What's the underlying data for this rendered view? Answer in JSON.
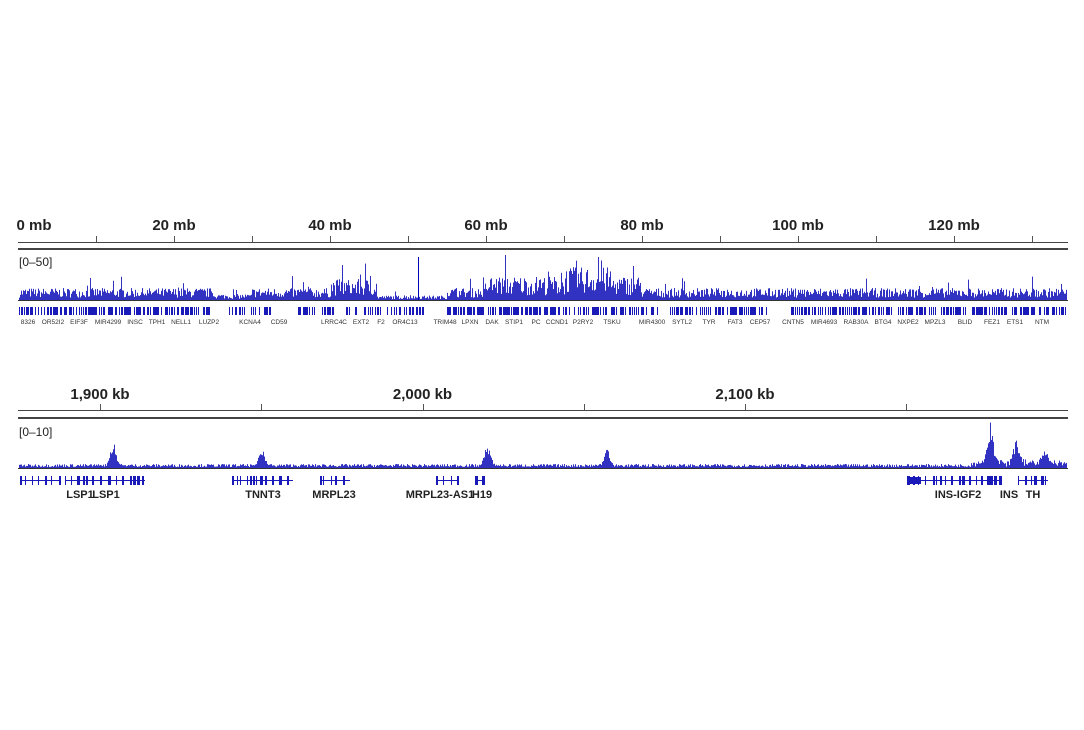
{
  "colors": {
    "signal": "#0000b4",
    "gene": "#1a1ab8",
    "axis": "#444444"
  },
  "panel1": {
    "ruler": {
      "unit": "mb",
      "labels": [
        "0 mb",
        "20 mb",
        "40 mb",
        "60 mb",
        "80 mb",
        "100 mb",
        "120 mb"
      ],
      "label_values": [
        0,
        20,
        40,
        60,
        80,
        100,
        120
      ],
      "tick_step": 10,
      "range_mb": [
        0,
        134.5
      ]
    },
    "data_range": "[0–50]",
    "genes": [
      "8326",
      "OR52I2",
      "EIF3F",
      "MIR4299",
      "INSC",
      "TPH1",
      "NELL1",
      "LUZP2",
      "KCNA4",
      "CD59",
      "LRRC4C",
      "EXT2",
      "F2",
      "OR4C13",
      "TRIM48",
      "LPXN",
      "DAK",
      "STIP1",
      "PC",
      "CCND1",
      "P2RY2",
      "TSKU",
      "MIR4300",
      "SYTL2",
      "TYR",
      "FAT3",
      "CEP57",
      "CNTN5",
      "MIR4693",
      "RAB30A",
      "BTG4",
      "NXPE2",
      "MPZL3",
      "BLID",
      "FEZ1",
      "ETS1",
      "NTM"
    ]
  },
  "panel2": {
    "ruler": {
      "unit": "kb",
      "labels": [
        "1,900 kb",
        "2,000 kb",
        "2,100 kb"
      ],
      "label_values": [
        1900,
        2000,
        2100
      ],
      "tick_step": 50,
      "range_kb": [
        1875,
        2200
      ]
    },
    "data_range": "[0–10]",
    "genes": [
      "LSP1",
      "LSP1",
      "TNNT3",
      "MRPL23",
      "MRPL23-AS1",
      "H19",
      "INS-IGF2",
      "INS",
      "TH"
    ],
    "peaks_kb": [
      {
        "pos": 1904,
        "value": 5.5
      },
      {
        "pos": 1950,
        "value": 4.3
      },
      {
        "pos": 2020,
        "value": 5.2
      },
      {
        "pos": 2057,
        "value": 4.0
      },
      {
        "pos": 2176,
        "value": 9.5
      },
      {
        "pos": 2184,
        "value": 5.2
      },
      {
        "pos": 2193,
        "value": 3.0
      }
    ]
  }
}
